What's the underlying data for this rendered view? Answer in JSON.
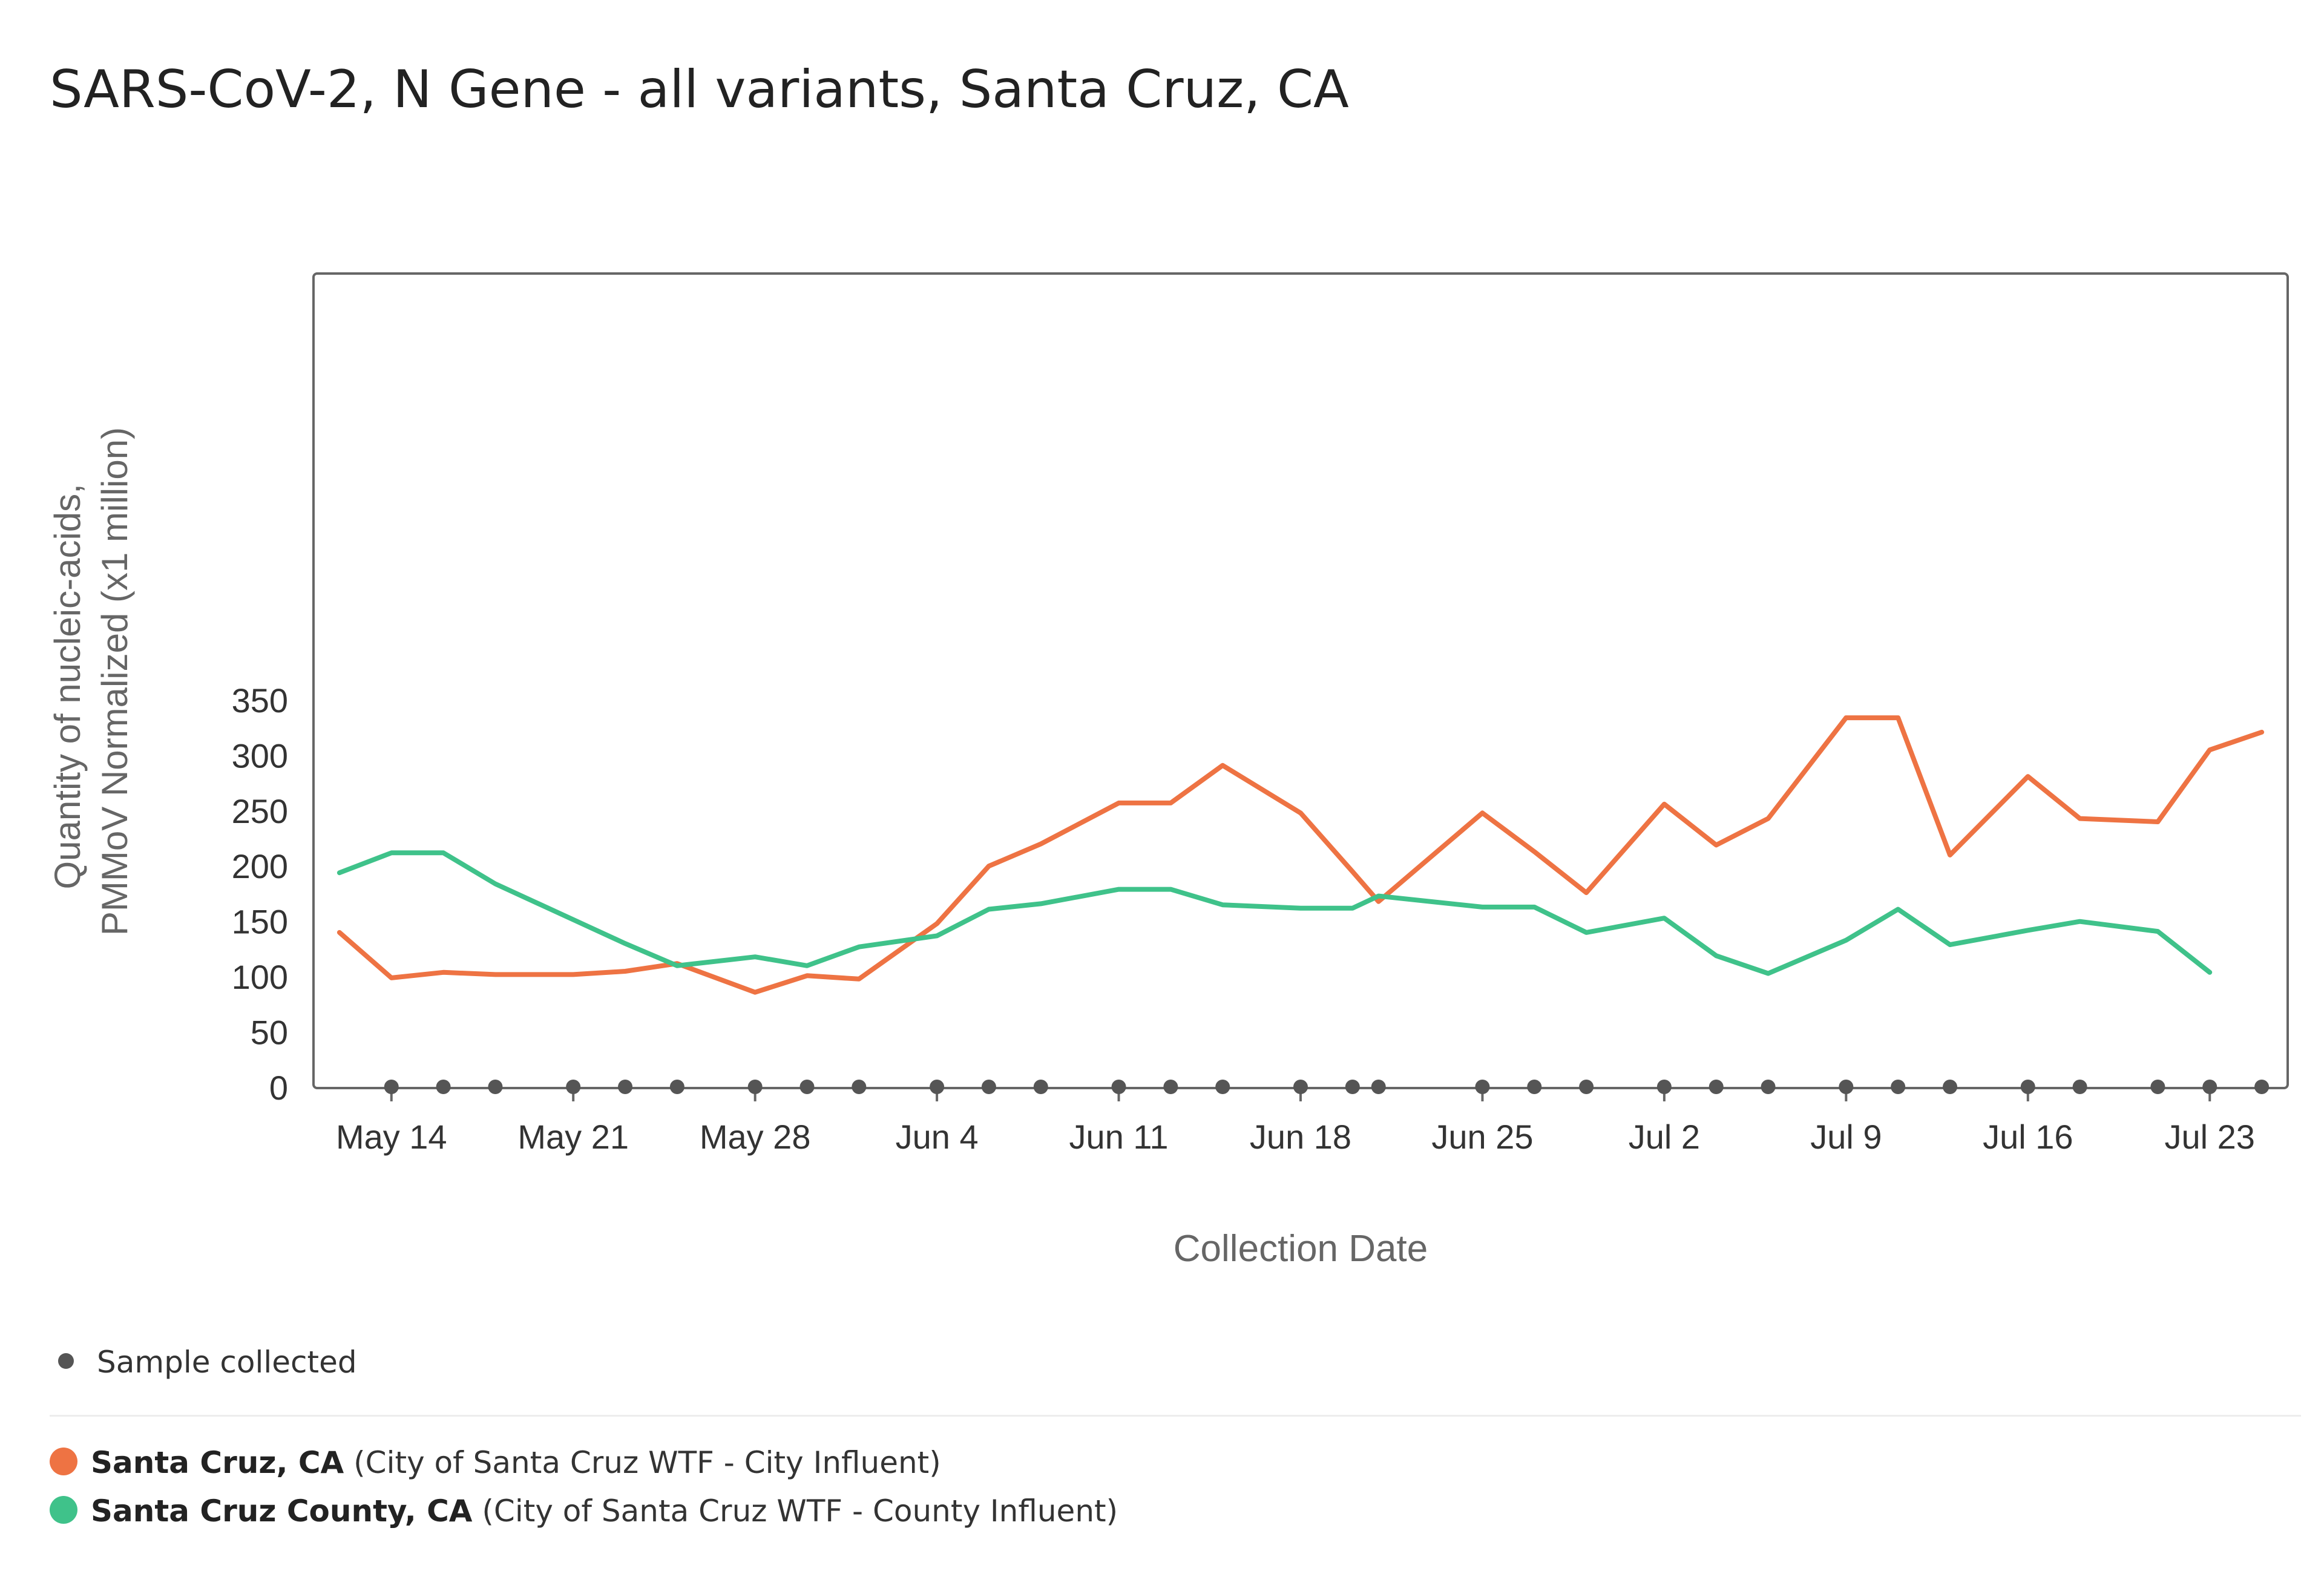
{
  "chart_data": {
    "type": "line",
    "title": "SARS-CoV-2, N Gene - all variants, Santa Cruz, CA",
    "xlabel": "Collection Date",
    "ylabel_lines": [
      "Quantity of nucleic-acids,",
      "PMMoV Normalized (x1 million)"
    ],
    "ylim": [
      0,
      350
    ],
    "yticks": [
      0,
      50,
      100,
      150,
      200,
      250,
      300,
      350
    ],
    "xlim": [
      "2023-05-11",
      "2023-07-26"
    ],
    "xticks": [
      {
        "date": "2023-05-14",
        "label": "May 14"
      },
      {
        "date": "2023-05-21",
        "label": "May 21"
      },
      {
        "date": "2023-05-28",
        "label": "May 28"
      },
      {
        "date": "2023-06-04",
        "label": "Jun 4"
      },
      {
        "date": "2023-06-11",
        "label": "Jun 11"
      },
      {
        "date": "2023-06-18",
        "label": "Jun 18"
      },
      {
        "date": "2023-06-25",
        "label": "Jun 25"
      },
      {
        "date": "2023-07-02",
        "label": "Jul 2"
      },
      {
        "date": "2023-07-09",
        "label": "Jul 9"
      },
      {
        "date": "2023-07-16",
        "label": "Jul 16"
      },
      {
        "date": "2023-07-23",
        "label": "Jul 23"
      }
    ],
    "grid": false,
    "series": [
      {
        "name": "Santa Cruz, CA",
        "detail": "(City of Santa Cruz WTF - City Influent)",
        "color": "#ee7343",
        "points": [
          [
            "2023-05-12",
            140
          ],
          [
            "2023-05-14",
            99
          ],
          [
            "2023-05-16",
            104
          ],
          [
            "2023-05-18",
            102
          ],
          [
            "2023-05-21",
            102
          ],
          [
            "2023-05-23",
            105
          ],
          [
            "2023-05-25",
            112
          ],
          [
            "2023-05-28",
            86
          ],
          [
            "2023-05-30",
            101
          ],
          [
            "2023-06-01",
            98
          ],
          [
            "2023-06-04",
            148
          ],
          [
            "2023-06-06",
            200
          ],
          [
            "2023-06-08",
            220
          ],
          [
            "2023-06-11",
            257
          ],
          [
            "2023-06-13",
            257
          ],
          [
            "2023-06-15",
            291
          ],
          [
            "2023-06-18",
            248
          ],
          [
            "2023-06-20",
            195
          ],
          [
            "2023-06-21",
            168
          ],
          [
            "2023-06-25",
            248
          ],
          [
            "2023-06-27",
            213
          ],
          [
            "2023-06-29",
            176
          ],
          [
            "2023-07-02",
            256
          ],
          [
            "2023-07-04",
            219
          ],
          [
            "2023-07-06",
            243
          ],
          [
            "2023-07-09",
            334
          ],
          [
            "2023-07-11",
            334
          ],
          [
            "2023-07-13",
            210
          ],
          [
            "2023-07-16",
            281
          ],
          [
            "2023-07-18",
            243
          ],
          [
            "2023-07-21",
            240
          ],
          [
            "2023-07-23",
            305
          ],
          [
            "2023-07-25",
            321
          ]
        ]
      },
      {
        "name": "Santa Cruz County, CA",
        "detail": "(City of Santa Cruz WTF - County Influent)",
        "color": "#3fc28a",
        "points": [
          [
            "2023-05-12",
            194
          ],
          [
            "2023-05-14",
            212
          ],
          [
            "2023-05-16",
            212
          ],
          [
            "2023-05-18",
            184
          ],
          [
            "2023-05-23",
            130
          ],
          [
            "2023-05-25",
            110
          ],
          [
            "2023-05-28",
            118
          ],
          [
            "2023-05-30",
            110
          ],
          [
            "2023-06-01",
            127
          ],
          [
            "2023-06-04",
            137
          ],
          [
            "2023-06-06",
            161
          ],
          [
            "2023-06-08",
            166
          ],
          [
            "2023-06-11",
            179
          ],
          [
            "2023-06-13",
            179
          ],
          [
            "2023-06-15",
            165
          ],
          [
            "2023-06-18",
            162
          ],
          [
            "2023-06-20",
            162
          ],
          [
            "2023-06-21",
            173
          ],
          [
            "2023-06-25",
            163
          ],
          [
            "2023-06-27",
            163
          ],
          [
            "2023-06-29",
            140
          ],
          [
            "2023-07-02",
            153
          ],
          [
            "2023-07-04",
            119
          ],
          [
            "2023-07-06",
            103
          ],
          [
            "2023-07-09",
            133
          ],
          [
            "2023-07-11",
            161
          ],
          [
            "2023-07-13",
            129
          ],
          [
            "2023-07-16",
            142
          ],
          [
            "2023-07-18",
            150
          ],
          [
            "2023-07-21",
            141
          ],
          [
            "2023-07-23",
            104
          ]
        ]
      }
    ],
    "samples": [
      "2023-05-14",
      "2023-05-16",
      "2023-05-18",
      "2023-05-21",
      "2023-05-23",
      "2023-05-25",
      "2023-05-28",
      "2023-05-30",
      "2023-06-01",
      "2023-06-04",
      "2023-06-06",
      "2023-06-08",
      "2023-06-11",
      "2023-06-13",
      "2023-06-15",
      "2023-06-18",
      "2023-06-20",
      "2023-06-21",
      "2023-06-25",
      "2023-06-27",
      "2023-06-29",
      "2023-07-02",
      "2023-07-04",
      "2023-07-06",
      "2023-07-09",
      "2023-07-11",
      "2023-07-13",
      "2023-07-16",
      "2023-07-18",
      "2023-07-21",
      "2023-07-23",
      "2023-07-25"
    ],
    "sample_color": "#555555"
  },
  "legend": {
    "sample_label": "Sample collected"
  }
}
